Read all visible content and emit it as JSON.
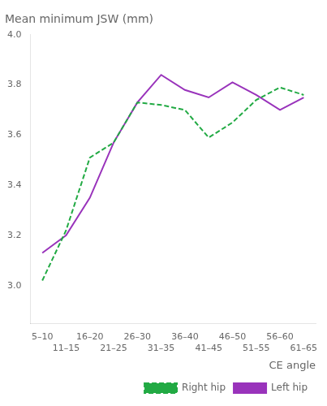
{
  "chart_data": {
    "type": "line",
    "title": "Mean minimum JSW (mm)",
    "x_label": "CE angle",
    "categories": [
      "5–10",
      "11–15",
      "16–20",
      "21–25",
      "26–30",
      "31–35",
      "36–40",
      "41–45",
      "46–50",
      "51–55",
      "56–60",
      "61–65"
    ],
    "series": [
      {
        "name": "Right hip",
        "color": "#22aa44",
        "line_style": "dashed",
        "values": [
          3.02,
          3.22,
          3.51,
          3.57,
          3.73,
          3.72,
          3.7,
          3.59,
          3.65,
          3.74,
          3.79,
          3.76
        ]
      },
      {
        "name": "Left hip",
        "color": "#9933bb",
        "line_style": "solid",
        "values": [
          3.13,
          3.2,
          3.35,
          3.57,
          3.73,
          3.84,
          3.78,
          3.75,
          3.81,
          3.76,
          3.7,
          3.75
        ]
      }
    ],
    "ylim": [
      2.85,
      4.0
    ],
    "yticks": [
      {
        "value": 3.0,
        "label": "3.0"
      },
      3.2,
      3.4,
      3.6,
      3.8,
      {
        "value": 4.0,
        "label": "4.0"
      }
    ],
    "grid": false,
    "legend": "lower right"
  }
}
